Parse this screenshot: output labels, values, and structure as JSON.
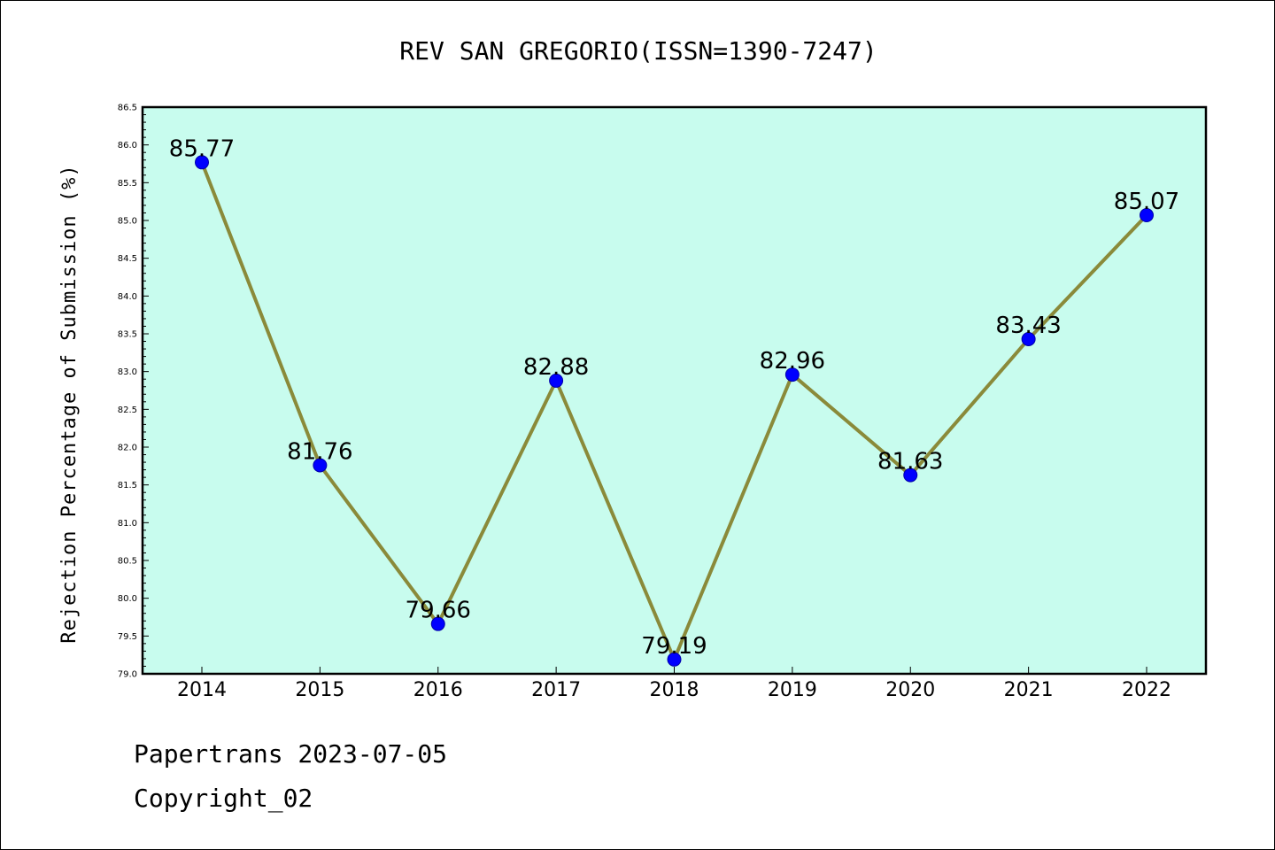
{
  "chart_data": {
    "type": "line",
    "title": "REV SAN GREGORIO(ISSN=1390-7247)",
    "xlabel": "",
    "ylabel": "Rejection Percentage of Submission (%)",
    "categories": [
      "2014",
      "2015",
      "2016",
      "2017",
      "2018",
      "2019",
      "2020",
      "2021",
      "2022"
    ],
    "values": [
      85.77,
      81.76,
      79.66,
      82.88,
      79.19,
      82.96,
      81.63,
      83.43,
      85.07
    ],
    "data_labels": [
      "85.77",
      "81.76",
      "79.66",
      "82.88",
      "79.19",
      "82.96",
      "81.63",
      "83.43",
      "85.07"
    ],
    "ylim": [
      79.0,
      86.5
    ],
    "yticks": [
      "79.0",
      "79.5",
      "80.0",
      "80.5",
      "81.0",
      "81.5",
      "82.0",
      "82.5",
      "83.0",
      "83.5",
      "84.0",
      "84.5",
      "85.0",
      "85.5",
      "86.0",
      "86.5"
    ],
    "grid": false,
    "legend": "none",
    "colors": {
      "plot_background": "#c8fcee",
      "line": "#8a8a3a",
      "marker": "#0000ff",
      "axes": "#000000"
    }
  },
  "footer": {
    "line1": "Papertrans 2023-07-05",
    "line2": "Copyright_02"
  }
}
